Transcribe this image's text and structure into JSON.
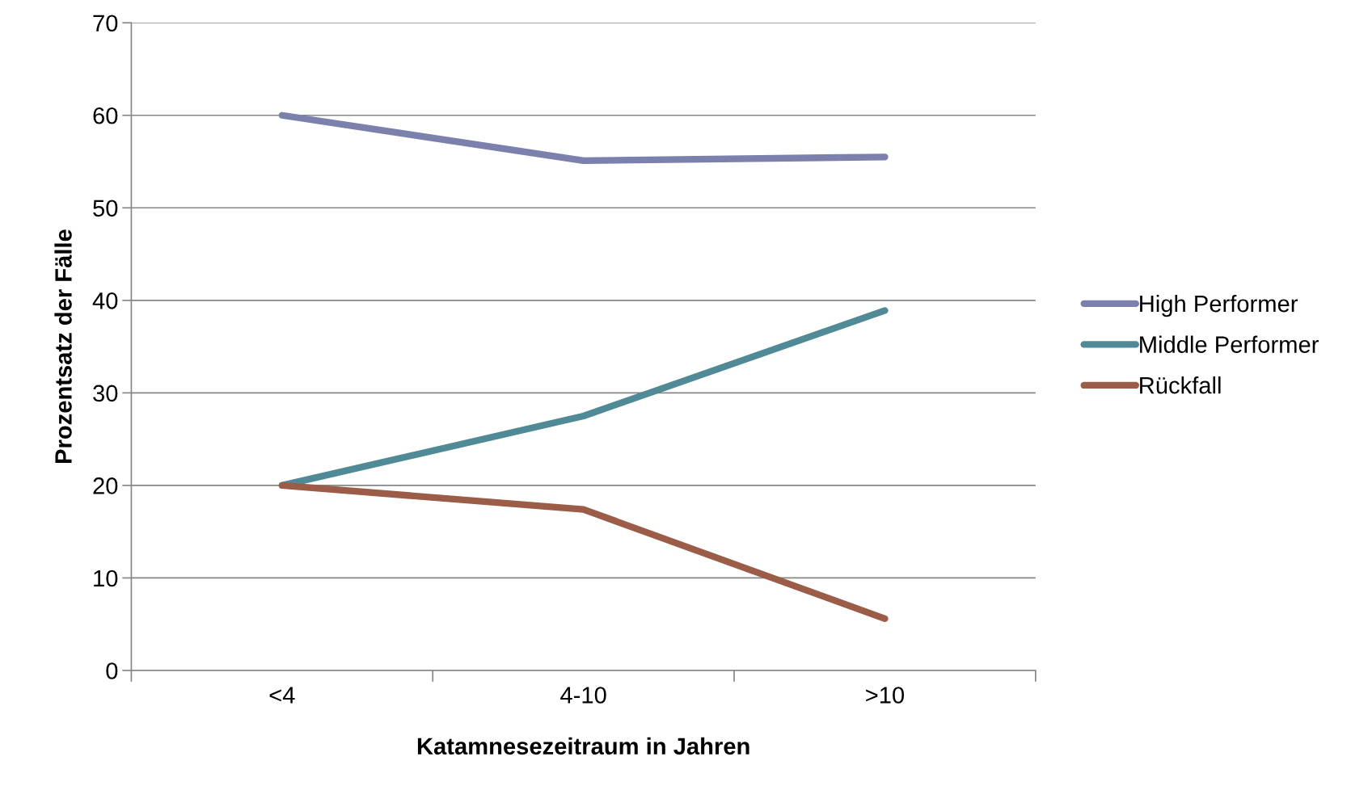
{
  "chart_data": {
    "type": "line",
    "xlabel": "Katamnesezeitraum in Jahren",
    "ylabel": "Prozentsatz der Fälle",
    "categories": [
      "<4",
      "4-10",
      ">10"
    ],
    "series": [
      {
        "name": "High Performer",
        "color": "#7b80ad",
        "values": [
          60,
          55.1,
          55.5
        ]
      },
      {
        "name": "Middle Performer",
        "color": "#4f8a96",
        "values": [
          20,
          27.5,
          38.9
        ]
      },
      {
        "name": "Rückfall",
        "color": "#9b5d48",
        "values": [
          20,
          17.4,
          5.6
        ]
      }
    ],
    "ylim": [
      0,
      70
    ],
    "yticks": [
      0,
      10,
      20,
      30,
      40,
      50,
      60,
      70
    ],
    "grid": "y",
    "legend": "right",
    "marker": "none",
    "line_style": "solid"
  }
}
